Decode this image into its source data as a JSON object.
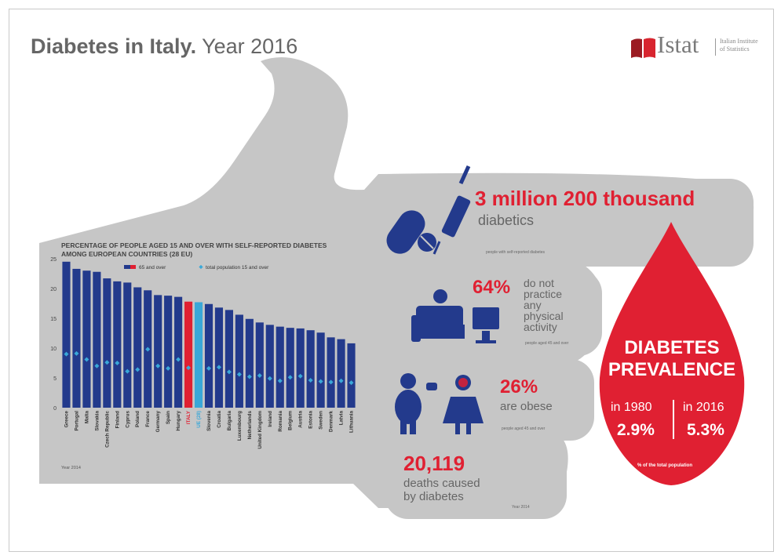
{
  "header": {
    "title_bold": "Diabetes in Italy.",
    "title_rest": " Year 2016",
    "logo_name": "Istat",
    "logo_sub_1": "Italian Institute",
    "logo_sub_2": "of Statistics"
  },
  "colors": {
    "navy": "#233a8c",
    "italy": "#e02032",
    "eu": "#3aa8d8",
    "point": "#3aa8d8",
    "hand": "#c6c6c6",
    "red": "#e02032"
  },
  "stats": {
    "diabetics_value": "3 million 200 thousand",
    "diabetics_label": "diabetics",
    "diabetics_note": "people with self-reported diabetes",
    "inactive_value": "64%",
    "inactive_label_1": "do not",
    "inactive_label_2": "practice",
    "inactive_label_3": "any",
    "inactive_label_4": "physical",
    "inactive_label_5": "activity",
    "inactive_note": "people aged 45 and over",
    "obese_value": "26%",
    "obese_label": "are obese",
    "obese_note": "people aged 45 and over",
    "deaths_value": "20,119",
    "deaths_label_1": "deaths caused",
    "deaths_label_2": "by diabetes",
    "deaths_note": "Year 2014"
  },
  "prevalence": {
    "title_1": "DIABETES",
    "title_2": "PREVALENCE",
    "year_1": "in 1980",
    "value_1": "2.9%",
    "year_2": "in 2016",
    "value_2": "5.3%",
    "note": "% of the total population"
  },
  "chart_data": {
    "type": "bar",
    "title_1": "PERCENTAGE OF PEOPLE AGED 15 AND OVER WITH SELF-REPORTED DIABETES",
    "title_2": "AMONG EUROPEAN COUNTRIES (28 EU)",
    "year_note": "Year 2014",
    "ylim": [
      0,
      25
    ],
    "yticks": [
      0,
      5,
      10,
      15,
      20,
      25
    ],
    "legend": [
      {
        "name": "65 and over",
        "marker": "bar"
      },
      {
        "name": "total population 15 and over",
        "marker": "diamond"
      }
    ],
    "categories": [
      "Greece",
      "Portugal",
      "Malta",
      "Slovakia",
      "Czech Republic",
      "Finland",
      "Cyprus",
      "Poland",
      "France",
      "Germany",
      "Spain",
      "Hungary",
      "ITALY",
      "UE (28)",
      "Slovenia",
      "Croatia",
      "Bulgaria",
      "Luxembourg",
      "Netherlands",
      "United Kingdom",
      "Ireland",
      "Romania",
      "Belgium",
      "Austria",
      "Estonia",
      "Sweden",
      "Denmark",
      "Latvia",
      "Lithuania"
    ],
    "series": [
      {
        "name": "65 and over",
        "values": [
          24.5,
          23.3,
          23.0,
          22.8,
          21.7,
          21.2,
          21.0,
          20.2,
          19.7,
          18.9,
          18.8,
          18.6,
          17.8,
          17.7,
          17.4,
          16.8,
          16.4,
          15.6,
          14.9,
          14.3,
          13.9,
          13.6,
          13.4,
          13.3,
          13.0,
          12.6,
          11.8,
          11.5,
          10.8
        ]
      },
      {
        "name": "total population 15 and over",
        "values": [
          9.0,
          9.1,
          8.1,
          7.0,
          7.6,
          7.5,
          6.1,
          6.4,
          9.8,
          7.0,
          6.6,
          8.1,
          6.7,
          6.7,
          6.6,
          6.8,
          6.0,
          5.6,
          5.2,
          5.4,
          4.9,
          4.5,
          5.1,
          5.3,
          4.6,
          4.4,
          4.3,
          4.5,
          4.2
        ]
      }
    ]
  }
}
